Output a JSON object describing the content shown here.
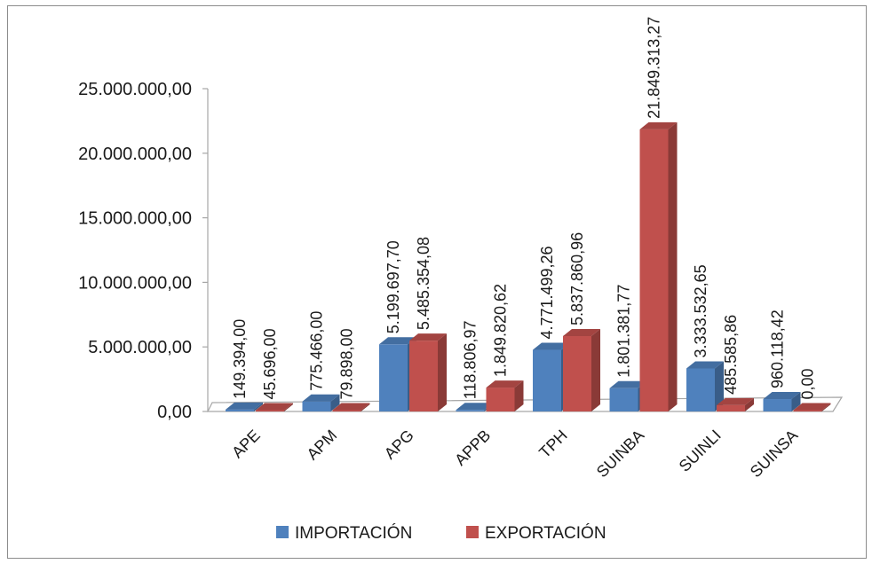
{
  "chart_data": {
    "type": "bar",
    "categories": [
      "APE",
      "APM",
      "APG",
      "APPB",
      "TPH",
      "SUINBA",
      "SUINLI",
      "SUINSA"
    ],
    "series": [
      {
        "name": "IMPORTACIÓN",
        "color": "#4f81bd",
        "values": [
          149394.0,
          775466.0,
          5199697.7,
          118806.97,
          4771499.26,
          1801381.77,
          3333532.65,
          960118.42
        ],
        "labels": [
          "149.394,00",
          "775.466,00",
          "5.199.697,70",
          "118.806,97",
          "4.771.499,26",
          "1.801.381,77",
          "3.333.532,65",
          "960.118,42"
        ]
      },
      {
        "name": "EXPORTACIÓN",
        "color": "#c0504d",
        "values": [
          45696.0,
          79898.0,
          5485354.08,
          1849820.62,
          5837860.96,
          21849313.27,
          485585.86,
          0.0
        ],
        "labels": [
          "45.696,00",
          "79.898,00",
          "5.485.354,08",
          "1.849.820,62",
          "5.837.860,96",
          "21.849.313,27",
          "485.585,86",
          "0,00"
        ]
      }
    ],
    "yticks": [
      0,
      5000000,
      10000000,
      15000000,
      20000000,
      25000000
    ],
    "ytick_labels": [
      "0,00",
      "5.000.000,00",
      "10.000.000,00",
      "15.000.000,00",
      "20.000.000,00",
      "25.000.000,00"
    ],
    "ylim": [
      0,
      25000000
    ],
    "grid": false,
    "legend_position": "bottom"
  }
}
